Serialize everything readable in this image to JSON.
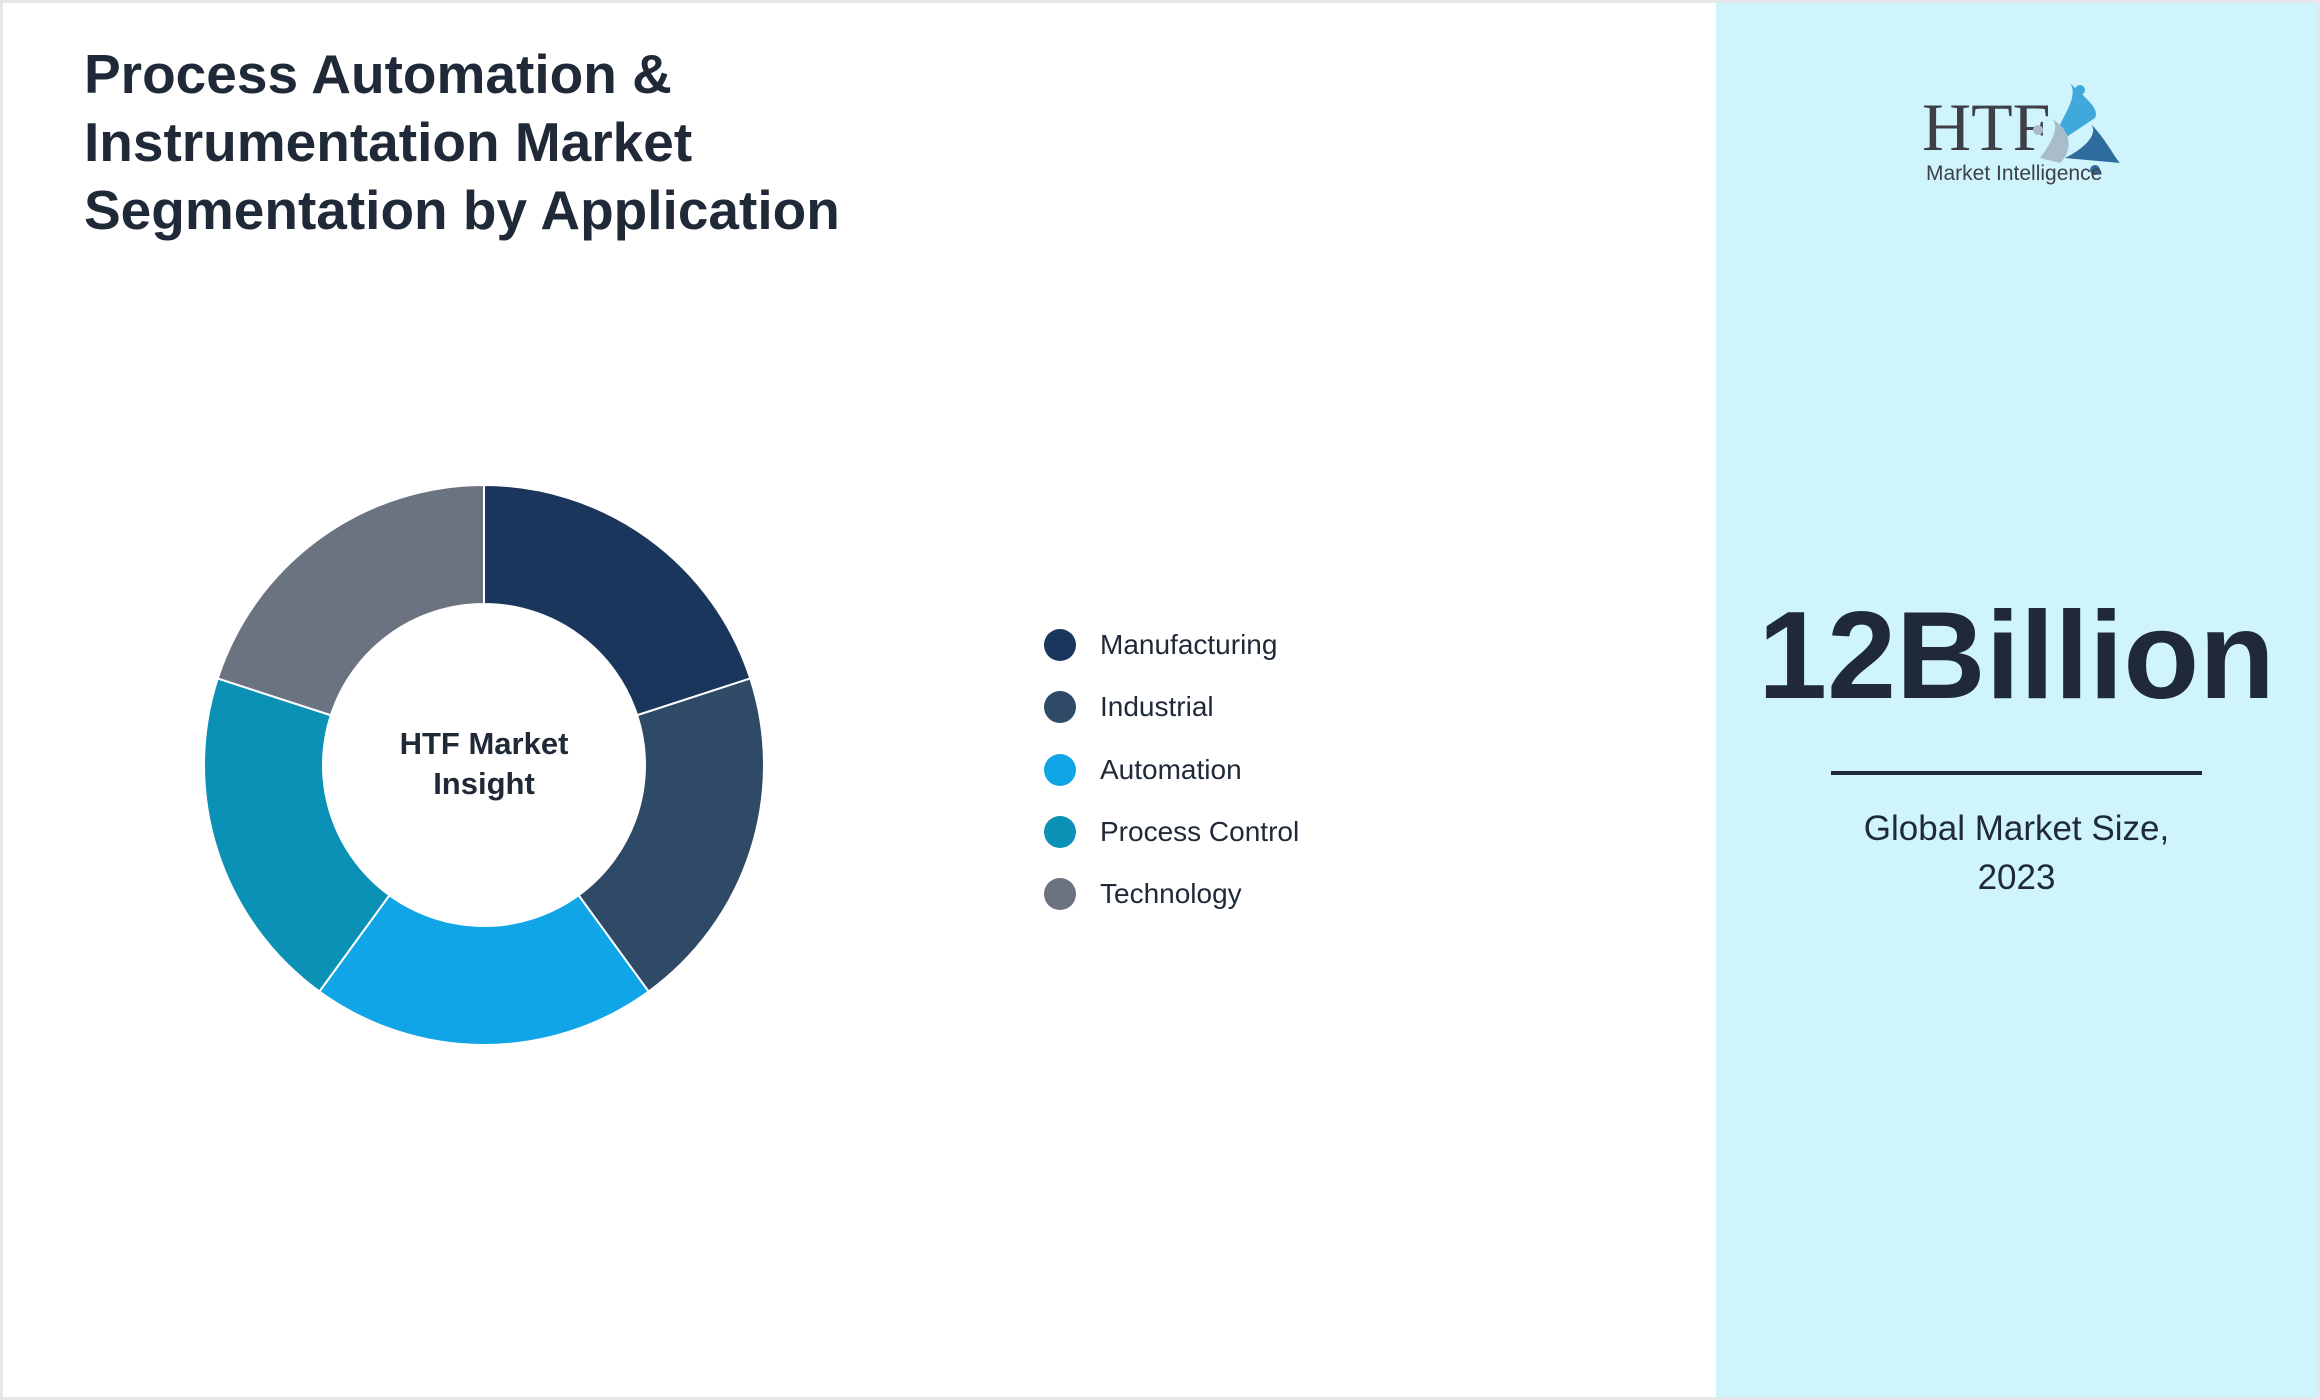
{
  "title": "Process Automation & Instrumentation Market Segmentation by Application",
  "logo": {
    "text": "HTF",
    "subtext": "Market Intelligence"
  },
  "market_size": {
    "value": "12Billion",
    "label": "Global Market Size, 2023"
  },
  "chart_data": {
    "type": "pie",
    "donut": true,
    "center_label": "HTF Market Insight",
    "categories": [
      "Manufacturing",
      "Industrial",
      "Automation",
      "Process Control",
      "Technology"
    ],
    "values": [
      20,
      20,
      20,
      20,
      20
    ],
    "colors": [
      "#1b365d",
      "#2e4a66",
      "#10a5e6",
      "#0a91b5",
      "#6b7280"
    ],
    "legend_position": "right"
  }
}
